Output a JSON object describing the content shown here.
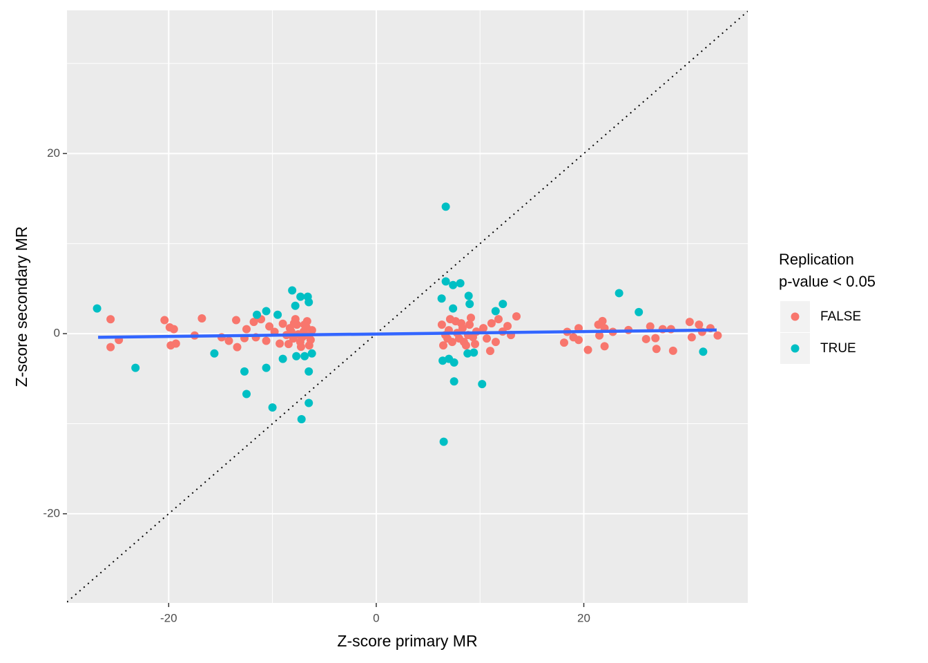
{
  "chart_data": {
    "type": "scatter",
    "x_label": "Z-score primary MR",
    "y_label": "Z-score secondary MR",
    "xlim": [
      -29.8,
      35.8
    ],
    "ylim": [
      -29.9,
      35.9
    ],
    "xticks": [
      -20,
      0,
      20
    ],
    "yticks": [
      -20,
      0,
      20
    ],
    "grid": true,
    "legend_title": [
      "Replication",
      "p-value < 0.05"
    ],
    "legend_position": "right",
    "identity_line": true,
    "trend": {
      "color": "#3366FF",
      "x": [
        -26.8,
        32.8
      ],
      "y": [
        -0.4,
        0.4
      ]
    },
    "series": [
      {
        "name": "FALSE",
        "color": "#F8766D",
        "x": [
          -25.6,
          -25.6,
          -24.8,
          -20.4,
          -19.9,
          -19.5,
          -19.8,
          -19.3,
          -17.5,
          -16.8,
          -14.9,
          -14.2,
          -13.5,
          -13.4,
          -12.7,
          -12.5,
          -11.8,
          -11.1,
          -11.6,
          -10.6,
          -10.3,
          -9.8,
          -9.3,
          -9.0,
          -8.65,
          -8.32,
          -7.99,
          -7.65,
          -7.32,
          -6.99,
          -6.66,
          -6.46,
          -6.19,
          -8.45,
          -7.79,
          -7.12,
          -6.72,
          -6.32,
          -8.19,
          -7.52,
          -6.92,
          -7.25,
          -7.92,
          -6.52,
          6.32,
          6.66,
          6.99,
          7.32,
          7.65,
          7.99,
          8.32,
          8.65,
          8.99,
          9.32,
          9.65,
          6.46,
          7.12,
          7.79,
          8.45,
          9.12,
          6.86,
          8.19,
          8.85,
          9.52,
          10.32,
          10.65,
          11.11,
          11.51,
          11.78,
          12.18,
          12.65,
          12.98,
          13.51,
          10.98,
          18.1,
          18.4,
          19.0,
          19.5,
          19.5,
          20.4,
          21.4,
          21.5,
          21.8,
          22.0,
          22.0,
          22.8,
          24.3,
          26.0,
          26.4,
          27.0,
          26.9,
          27.6,
          28.4,
          28.6,
          30.2,
          30.4,
          31.1,
          31.4,
          32.2,
          32.9
        ],
        "y": [
          1.6,
          -1.5,
          -0.7,
          1.5,
          0.7,
          0.5,
          -1.3,
          -1.1,
          -0.2,
          1.7,
          -0.4,
          -0.8,
          1.5,
          -1.5,
          -0.5,
          0.5,
          1.3,
          1.6,
          -0.4,
          -0.8,
          0.8,
          0.2,
          -1.1,
          1.1,
          -0.15,
          0.61,
          -0.54,
          1.0,
          -0.92,
          0.23,
          1.38,
          -1.3,
          0.38,
          -1.15,
          1.61,
          -0.38,
          0.69,
          -0.69,
          0.23,
          -0.08,
          1.0,
          -1.46,
          1.15,
          -0.23,
          1.0,
          -0.15,
          0.38,
          -0.92,
          1.38,
          -0.54,
          0.61,
          -1.3,
          1.0,
          -0.38,
          0.23,
          -1.3,
          1.61,
          0.08,
          -0.92,
          1.76,
          -0.54,
          1.15,
          -0.15,
          -1.15,
          0.61,
          -0.54,
          1.15,
          -0.92,
          1.61,
          0.23,
          0.84,
          -0.15,
          1.92,
          -1.92,
          -1.0,
          0.2,
          -0.4,
          0.6,
          -0.7,
          -1.8,
          1.0,
          -0.2,
          1.4,
          0.6,
          -1.4,
          0.2,
          0.4,
          -0.6,
          0.8,
          -1.7,
          -0.5,
          0.5,
          0.5,
          -1.9,
          1.3,
          -0.4,
          1.0,
          0.2,
          0.6,
          -0.2
        ]
      },
      {
        "name": "TRUE",
        "color": "#00BFC4",
        "x": [
          -26.9,
          -23.2,
          -15.6,
          -12.7,
          -12.5,
          -10.6,
          -10.0,
          -7.2,
          -6.5,
          -6.5,
          -8.1,
          -7.3,
          -6.6,
          -6.5,
          -7.8,
          -11.5,
          -10.6,
          -9.5,
          -9.0,
          -7.7,
          -6.9,
          -6.2,
          6.7,
          6.7,
          7.4,
          8.1,
          8.9,
          9.0,
          7.4,
          6.3,
          23.4,
          25.3,
          12.2,
          11.5,
          7.5,
          10.2,
          6.5,
          31.5,
          6.4,
          7.5,
          8.8,
          9.4,
          7.0
        ],
        "y": [
          2.8,
          -3.8,
          -2.2,
          -4.2,
          -6.7,
          -3.8,
          -8.2,
          -9.5,
          -7.7,
          -4.2,
          4.8,
          4.1,
          4.1,
          3.5,
          3.1,
          2.1,
          2.5,
          2.1,
          -2.8,
          -2.5,
          -2.5,
          -2.2,
          14.1,
          5.8,
          5.4,
          5.6,
          4.2,
          3.3,
          2.8,
          3.9,
          4.5,
          2.4,
          3.3,
          2.5,
          -5.3,
          -5.6,
          -12.0,
          -2.0,
          -3.0,
          -3.2,
          -2.2,
          -2.1,
          -2.8
        ]
      }
    ]
  }
}
